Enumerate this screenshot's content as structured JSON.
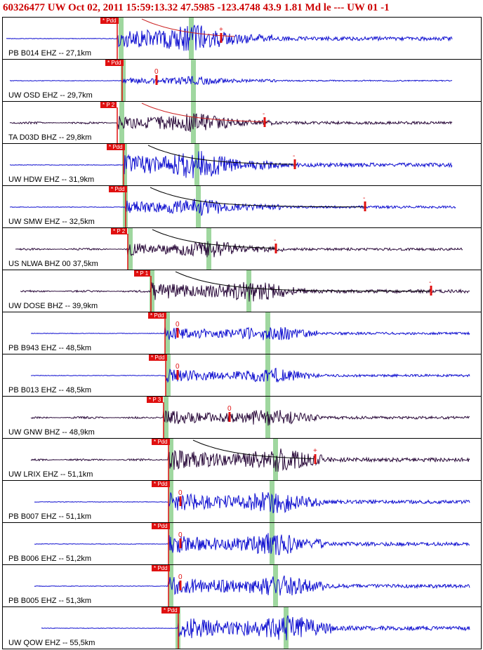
{
  "header": {
    "event_line": "60326477 UW Oct 02, 2011 15:59:13.32    47.5985 -123.4748 43.9 1.81 Md le --- UW 01  -1"
  },
  "colors": {
    "blue_trace": "#1010d0",
    "dark_trace": "#2a0a3a",
    "pick": "#e01010",
    "green_band": "#9fd79f",
    "decay_curve": "#cc2222"
  },
  "panels": [
    {
      "id": "b014",
      "label": "PB B014 EHZ -- 27,1km",
      "pick_label": "* Pdd",
      "trace": "blue",
      "marker": "+",
      "coda": "red"
    },
    {
      "id": "osd",
      "label": "UW OSD EHZ -- 29,7km",
      "pick_label": "* Pdd",
      "trace": "blue",
      "marker": "0",
      "coda": "none"
    },
    {
      "id": "d03d",
      "label": "TA D03D BHZ -- 29,8km",
      "pick_label": "* P 2",
      "trace": "dark",
      "marker": "-",
      "coda": "red"
    },
    {
      "id": "hdw",
      "label": "UW HDW EHZ -- 31,9km",
      "pick_label": "* Pdd",
      "trace": "blue",
      "marker": "-",
      "coda": "black"
    },
    {
      "id": "smw",
      "label": "UW SMW EHZ -- 32,5km",
      "pick_label": "* Pdd",
      "trace": "blue",
      "marker": "-",
      "coda": "black"
    },
    {
      "id": "nlwa",
      "label": "US NLWA BHZ 00 37,5km",
      "pick_label": "* P 2",
      "trace": "dark",
      "marker": "-",
      "coda": "black"
    },
    {
      "id": "dose",
      "label": "UW DOSE BHZ -- 39,9km",
      "pick_label": "* P 1",
      "trace": "dark",
      "marker": "-",
      "coda": "black"
    },
    {
      "id": "b943",
      "label": "PB B943 EHZ -- 48,5km",
      "pick_label": "* Pdd",
      "trace": "blue",
      "marker": "0",
      "coda": "none"
    },
    {
      "id": "b013",
      "label": "PB B013 EHZ -- 48,5km",
      "pick_label": "* Pdd",
      "trace": "blue",
      "marker": "0",
      "coda": "none"
    },
    {
      "id": "gnw",
      "label": "UW GNW BHZ -- 48,9km",
      "pick_label": "* P 3",
      "trace": "dark",
      "marker": "0",
      "coda": "none"
    },
    {
      "id": "lrix",
      "label": "UW LRIX EHZ -- 51,1km",
      "pick_label": "* Pdd",
      "trace": "dark",
      "marker": "+",
      "coda": "black"
    },
    {
      "id": "b007",
      "label": "PB B007 EHZ -- 51,1km",
      "pick_label": "* Pdd",
      "trace": "blue",
      "marker": "0",
      "coda": "none"
    },
    {
      "id": "b006",
      "label": "PB B006 EHZ -- 51,2km",
      "pick_label": "* Pdd",
      "trace": "blue",
      "marker": "0",
      "coda": "none"
    },
    {
      "id": "b005",
      "label": "PB B005 EHZ -- 51,3km",
      "pick_label": "* Pdd",
      "trace": "blue",
      "marker": "0",
      "coda": "none"
    },
    {
      "id": "qow",
      "label": "UW QOW EHZ -- 55,5km",
      "pick_label": "* Pdd",
      "trace": "blue",
      "marker": "",
      "coda": "none"
    }
  ]
}
